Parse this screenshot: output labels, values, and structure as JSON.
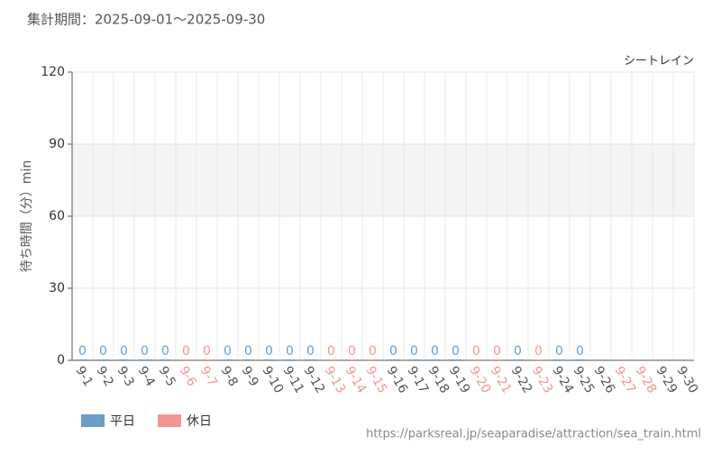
{
  "header": "集計期間：2025-09-01～2025-09-30",
  "footer": "https://parksreal.jp/seaparadise/attraction/sea_train.html",
  "chart_data": {
    "type": "bar",
    "subtitle": "シートレイン",
    "y_label": "待ち時間（分）min",
    "categories": [
      "9-1",
      "9-2",
      "9-3",
      "9-4",
      "9-5",
      "9-6",
      "9-7",
      "9-8",
      "9-9",
      "9-10",
      "9-11",
      "9-12",
      "9-13",
      "9-14",
      "9-15",
      "9-16",
      "9-17",
      "9-18",
      "9-19",
      "9-20",
      "9-21",
      "9-22",
      "9-23",
      "9-24",
      "9-25",
      "9-26",
      "9-27",
      "9-28",
      "9-29",
      "9-30"
    ],
    "category_colors": [
      "#555",
      "#555",
      "#555",
      "#555",
      "#555",
      "#f59494",
      "#f59494",
      "#555",
      "#555",
      "#555",
      "#555",
      "#555",
      "#f59494",
      "#f59494",
      "#f59494",
      "#555",
      "#555",
      "#555",
      "#555",
      "#f59494",
      "#f59494",
      "#555",
      "#f59494",
      "#555",
      "#555",
      "#555",
      "#f59494",
      "#f59494",
      "#555",
      "#555"
    ],
    "series": [
      {
        "name": "平日",
        "color": "#6a9ec5",
        "values": [
          0,
          0,
          0,
          0,
          0,
          null,
          null,
          0,
          0,
          0,
          0,
          0,
          null,
          null,
          null,
          0,
          0,
          0,
          0,
          null,
          null,
          0,
          null,
          0,
          0,
          null,
          null,
          null,
          null,
          null
        ]
      },
      {
        "name": "休日",
        "color": "#f59494",
        "values": [
          null,
          null,
          null,
          null,
          null,
          0,
          0,
          null,
          null,
          null,
          null,
          null,
          0,
          0,
          0,
          null,
          null,
          null,
          null,
          0,
          0,
          null,
          0,
          null,
          null,
          null,
          null,
          null,
          null,
          null
        ]
      }
    ],
    "ylim": [
      0,
      120
    ],
    "yticks": [
      0,
      30,
      60,
      90,
      120
    ],
    "grid": true
  }
}
